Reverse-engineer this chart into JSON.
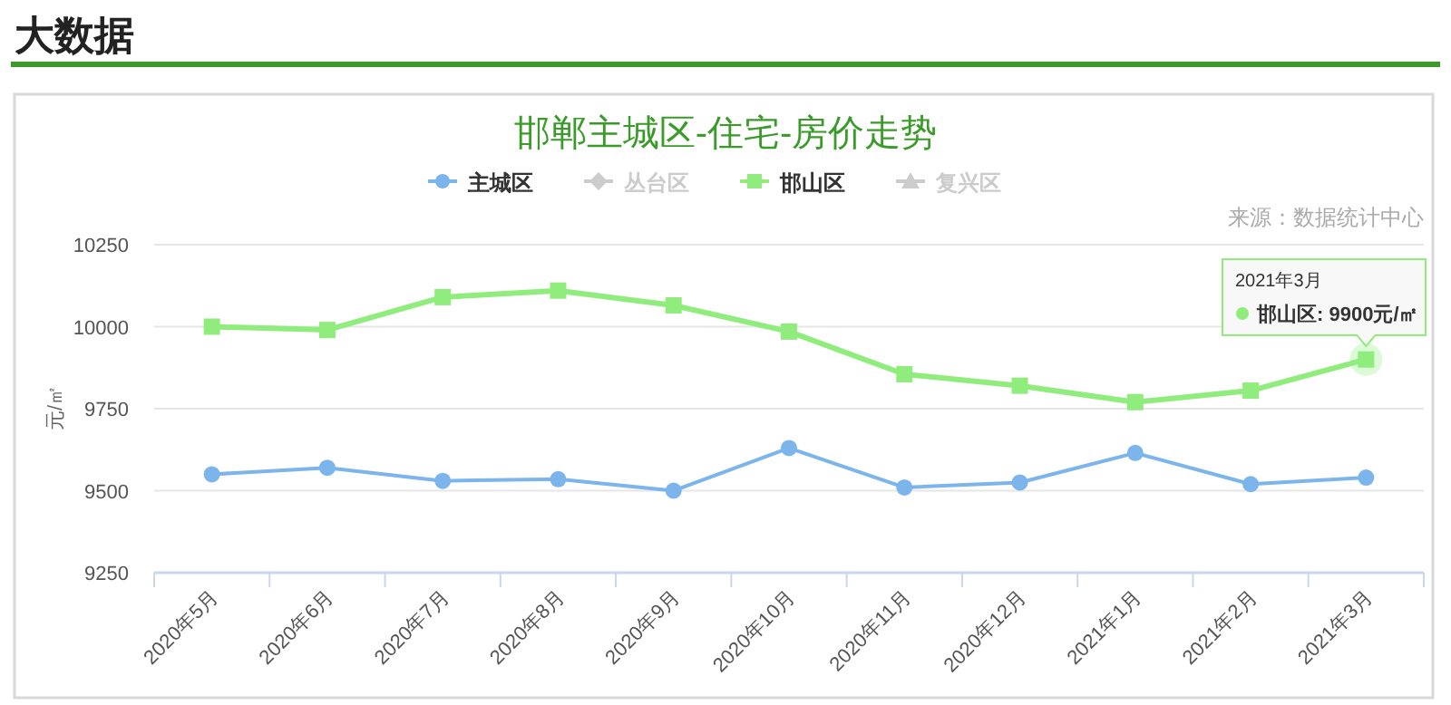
{
  "chart_data": {
    "type": "line",
    "title": "大数据",
    "subtitle": "邯郸主城区-住宅-房价走势",
    "ylabel": "元/㎡",
    "categories": [
      "2020年5月",
      "2020年6月",
      "2020年7月",
      "2020年8月",
      "2020年9月",
      "2020年10月",
      "2020年11月",
      "2020年12月",
      "2021年1月",
      "2021年2月",
      "2021年3月"
    ],
    "series": [
      {
        "name": "主城区",
        "color": "#7cb5ec",
        "marker": "circle",
        "values": [
          9550,
          9570,
          9530,
          9535,
          9500,
          9630,
          9510,
          9525,
          9615,
          9520,
          9540
        ]
      },
      {
        "name": "丛台区",
        "color": "#cccccc",
        "marker": "diamond",
        "values": [
          null,
          null,
          null,
          null,
          null,
          null,
          null,
          null,
          null,
          null,
          null
        ]
      },
      {
        "name": "邯山区",
        "color": "#90ed7d",
        "marker": "square",
        "values": [
          10000,
          9990,
          10090,
          10110,
          10065,
          9985,
          9855,
          9820,
          9770,
          9805,
          9900
        ]
      },
      {
        "name": "复兴区",
        "color": "#cccccc",
        "marker": "triangle",
        "values": [
          null,
          null,
          null,
          null,
          null,
          null,
          null,
          null,
          null,
          null,
          null
        ]
      }
    ],
    "ylim": [
      9250,
      10250
    ],
    "yticks": [
      9250,
      9500,
      9750,
      10000,
      10250
    ],
    "grid": "y",
    "legend": "top",
    "annotations": [
      "2021年3月",
      {
        "text": "邯山区: 9900元/㎡",
        "x": "2021年3月",
        "y": 9900
      },
      "来源：数据统计中心"
    ]
  }
}
